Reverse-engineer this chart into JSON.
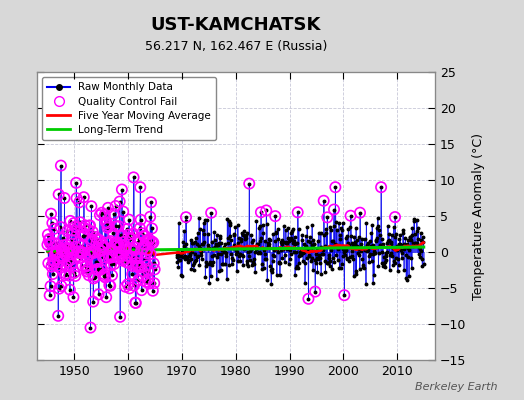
{
  "title": "UST-KAMCHATSK",
  "subtitle": "56.217 N, 162.467 E (Russia)",
  "ylabel": "Temperature Anomaly (°C)",
  "attribution": "Berkeley Earth",
  "ylim": [
    -15,
    25
  ],
  "yticks": [
    -15,
    -10,
    -5,
    0,
    5,
    10,
    15,
    20,
    25
  ],
  "xlim": [
    1943,
    2017
  ],
  "xticks": [
    1950,
    1960,
    1970,
    1980,
    1990,
    2000,
    2010
  ],
  "raw_color": "#0000EE",
  "ma_color": "#FF0000",
  "trend_color": "#00CC00",
  "qc_color": "#FF00FF",
  "bg_color": "#D8D8D8",
  "plot_bg_color": "#FFFFFF",
  "grid_color": "#C8C8D8",
  "start_year": 1945,
  "end_year": 2015,
  "seed": 77
}
